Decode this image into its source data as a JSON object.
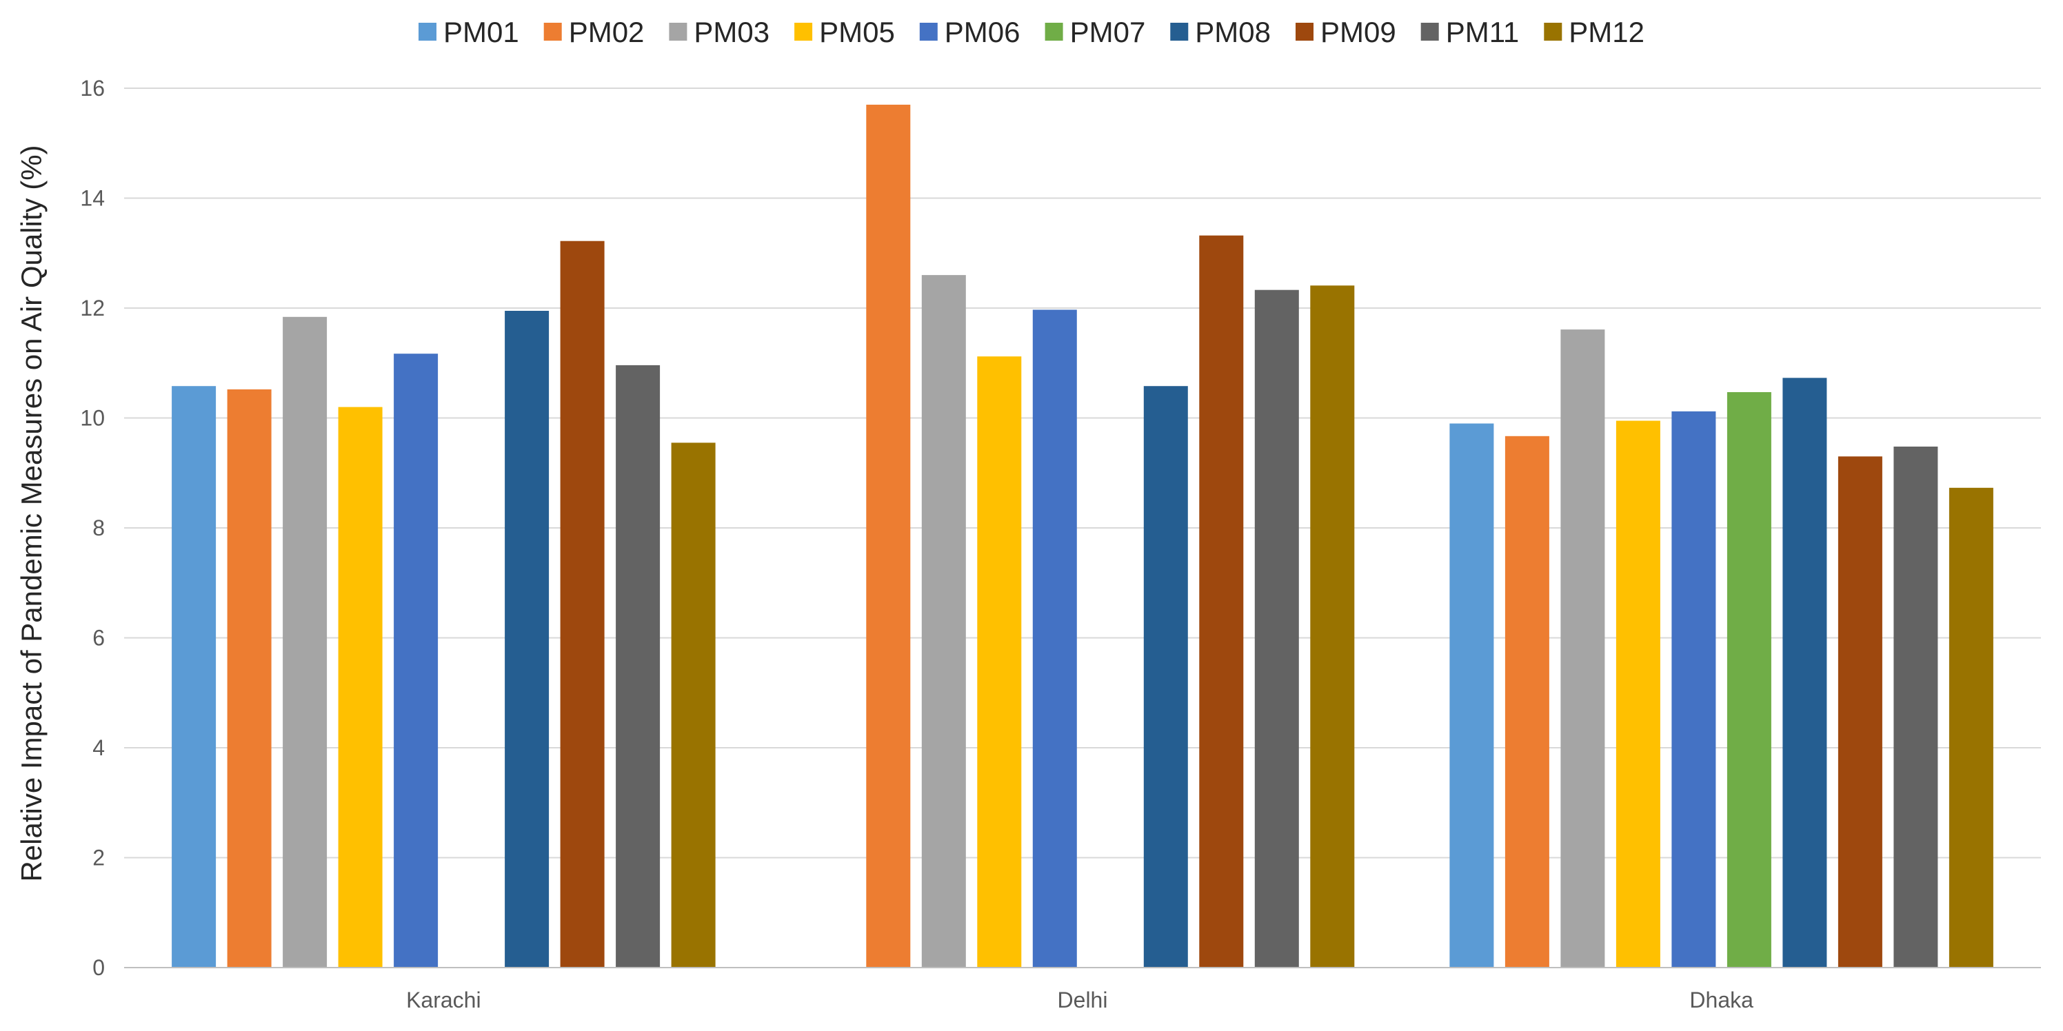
{
  "chart_data": {
    "type": "bar",
    "title": "",
    "xlabel": "",
    "ylabel": "Relative Impact of Pandemic Measures on Air Quality (%)",
    "ylim": [
      0,
      16
    ],
    "yticks": [
      0,
      2,
      4,
      6,
      8,
      10,
      12,
      14,
      16
    ],
    "grid": true,
    "legend_position": "top",
    "categories": [
      "Karachi",
      "Delhi",
      "Dhaka"
    ],
    "series": [
      {
        "name": "PM01",
        "color": "#5B9BD5",
        "values": [
          10.58,
          null,
          9.9
        ]
      },
      {
        "name": "PM02",
        "color": "#ED7D31",
        "values": [
          10.52,
          15.7,
          9.67
        ]
      },
      {
        "name": "PM03",
        "color": "#A5A5A5",
        "values": [
          11.84,
          12.6,
          11.61
        ]
      },
      {
        "name": "PM05",
        "color": "#FFC000",
        "values": [
          10.2,
          11.12,
          9.95
        ]
      },
      {
        "name": "PM06",
        "color": "#4472C4",
        "values": [
          11.17,
          11.97,
          10.12
        ]
      },
      {
        "name": "PM07",
        "color": "#70AD47",
        "values": [
          null,
          null,
          10.47
        ]
      },
      {
        "name": "PM08",
        "color": "#255E91",
        "values": [
          11.95,
          10.58,
          10.73
        ]
      },
      {
        "name": "PM09",
        "color": "#9E480E",
        "values": [
          13.22,
          13.32,
          9.3
        ]
      },
      {
        "name": "PM11",
        "color": "#636363",
        "values": [
          10.96,
          12.33,
          9.48
        ]
      },
      {
        "name": "PM12",
        "color": "#997300",
        "values": [
          9.55,
          12.41,
          8.73
        ]
      }
    ]
  },
  "colors": {
    "gridline": "#D9D9D9",
    "axis_line": "#BFBFBF",
    "tick_text": "#595959",
    "label_text": "#262626"
  }
}
